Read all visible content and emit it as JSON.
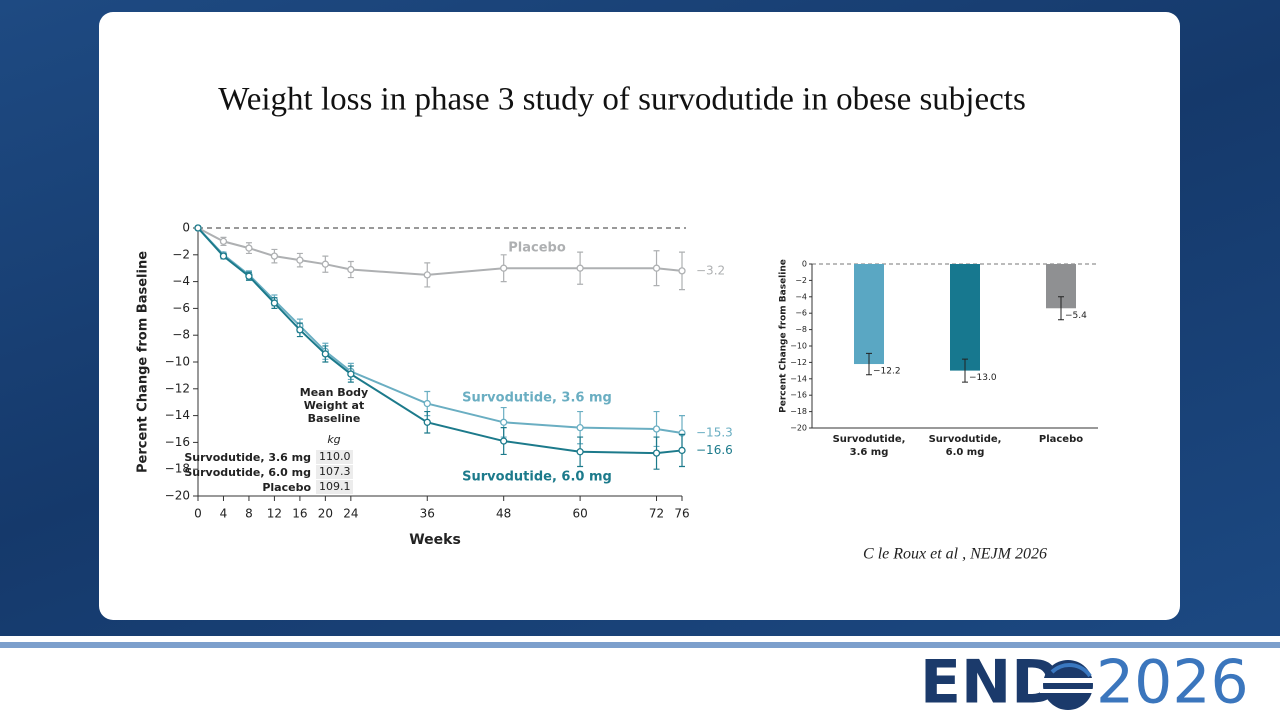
{
  "title": "Weight loss in phase 3 study of survodutide in obese subjects",
  "citation": "C le Roux et al , NEJM 2026",
  "logo": {
    "left": "END",
    "right": "2026"
  },
  "chart_data": [
    {
      "type": "line",
      "ylabel": "Percent Change from Baseline",
      "xlabel": "Weeks",
      "x": [
        0,
        4,
        8,
        12,
        16,
        20,
        24,
        36,
        48,
        60,
        72,
        76
      ],
      "xlim": [
        0,
        76
      ],
      "xticks": [
        0,
        4,
        8,
        12,
        16,
        20,
        24,
        36,
        48,
        60,
        72,
        76
      ],
      "ylim": [
        -20,
        0
      ],
      "yticks": [
        0,
        {
          "value": -2,
          "label": "−2"
        },
        {
          "value": -4,
          "label": "−4"
        },
        {
          "value": -6,
          "label": "−6"
        },
        {
          "value": -8,
          "label": "−8"
        },
        {
          "value": -10,
          "label": "−10"
        },
        {
          "value": -12,
          "label": "−12"
        },
        {
          "value": -14,
          "label": "−14"
        },
        {
          "value": -16,
          "label": "−16"
        },
        {
          "value": -18,
          "label": "−18"
        },
        {
          "value": -20,
          "label": "−20"
        }
      ],
      "series": [
        {
          "name": "Placebo",
          "color": "#aeb0b2",
          "values": [
            0,
            -1.0,
            -1.5,
            -2.1,
            -2.4,
            -2.7,
            -3.1,
            -3.5,
            -3.0,
            -3.0,
            -3.0,
            -3.2
          ],
          "errors": [
            0,
            0.3,
            0.4,
            0.5,
            0.5,
            0.6,
            0.6,
            0.9,
            1.0,
            1.2,
            1.3,
            1.4
          ],
          "value_labels": [
            null,
            null,
            null,
            null,
            null,
            null,
            null,
            null,
            null,
            null,
            null,
            "−3.2"
          ]
        },
        {
          "name": "Survodutide, 3.6 mg",
          "color": "#6aaec2",
          "values": [
            0,
            -2.0,
            -3.5,
            -5.4,
            -7.3,
            -9.2,
            -10.7,
            -13.1,
            -14.5,
            -14.9,
            -15.0,
            -15.3
          ],
          "errors": [
            0,
            0.2,
            0.3,
            0.4,
            0.5,
            0.6,
            0.6,
            0.9,
            1.1,
            1.2,
            1.3,
            1.3
          ],
          "value_labels": [
            null,
            null,
            null,
            null,
            null,
            null,
            null,
            null,
            null,
            null,
            null,
            "−15.3"
          ]
        },
        {
          "name": "Survodutide, 6.0 mg",
          "color": "#1c7a8b",
          "values": [
            0,
            -2.1,
            -3.6,
            -5.6,
            -7.6,
            -9.4,
            -10.9,
            -14.5,
            -15.9,
            -16.7,
            -16.8,
            -16.6
          ],
          "errors": [
            0,
            0.2,
            0.3,
            0.4,
            0.5,
            0.6,
            0.6,
            0.8,
            1.0,
            1.1,
            1.2,
            1.2
          ],
          "value_labels": [
            null,
            null,
            null,
            null,
            null,
            null,
            null,
            null,
            null,
            null,
            null,
            "−16.6"
          ]
        }
      ],
      "table": {
        "header": "Mean Body Weight at Baseline",
        "unit": "kg",
        "rows": [
          [
            "Survodutide, 3.6 mg",
            "110.0"
          ],
          [
            "Survodutide, 6.0 mg",
            "107.3"
          ],
          [
            "Placebo",
            "109.1"
          ]
        ]
      }
    },
    {
      "type": "bar",
      "ylabel": "Percent Change from Baseline",
      "categories": [
        "Survodutide, 3.6 mg",
        "Survodutide, 6.0 mg",
        "Placebo"
      ],
      "values": [
        -12.2,
        -13.0,
        -5.4
      ],
      "errors": [
        1.3,
        1.4,
        1.4
      ],
      "value_labels": [
        "−12.2",
        "−13.0",
        "−5.4"
      ],
      "colors": [
        "#5aa7c3",
        "#17788f",
        "#8f9092"
      ],
      "ylim": [
        -20,
        0
      ],
      "yticks": [
        0,
        {
          "value": -2,
          "label": "−2"
        },
        {
          "value": -4,
          "label": "−4"
        },
        {
          "value": -6,
          "label": "−6"
        },
        {
          "value": -8,
          "label": "−8"
        },
        {
          "value": -10,
          "label": "−10"
        },
        {
          "value": -12,
          "label": "−12"
        },
        {
          "value": -14,
          "label": "−14"
        },
        {
          "value": -16,
          "label": "−16"
        },
        {
          "value": -18,
          "label": "−18"
        },
        {
          "value": -20,
          "label": "−20"
        }
      ]
    }
  ]
}
